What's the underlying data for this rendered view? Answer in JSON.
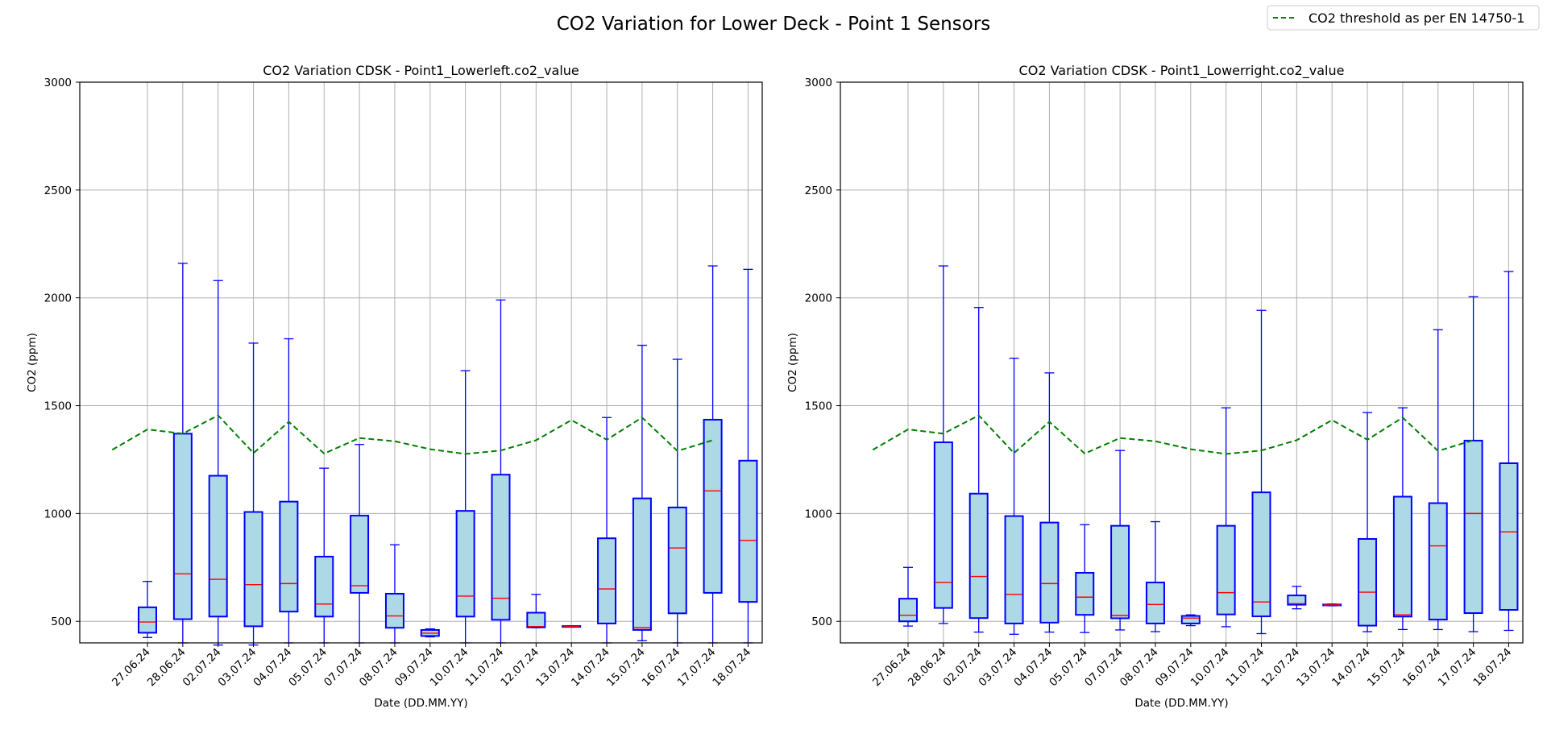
{
  "figure": {
    "title": "CO2 Variation for Lower Deck - Point 1 Sensors",
    "legend": {
      "label": "CO2 threshold as per EN 14750-1",
      "placement": "top-right"
    }
  },
  "colors": {
    "box_fill": "#add8e6",
    "box_edge": "#0000ff",
    "median": "#ff0000",
    "threshold": "#008000",
    "grid": "#b0b0b0"
  },
  "chart_data": [
    {
      "type": "box",
      "title": "CO2 Variation CDSK - Point1_Lowerleft.co2_value",
      "xlabel": "Date (DD.MM.YY)",
      "ylabel": "CO2 (ppm)",
      "ylim": [
        400,
        3000
      ],
      "yticks": [
        500,
        1000,
        1500,
        2000,
        2500,
        3000
      ],
      "grid": true,
      "categories": [
        "27.06.24",
        "28.06.24",
        "02.07.24",
        "03.07.24",
        "04.07.24",
        "05.07.24",
        "07.07.24",
        "08.07.24",
        "09.07.24",
        "10.07.24",
        "11.07.24",
        "12.07.24",
        "13.07.24",
        "14.07.24",
        "15.07.24",
        "16.07.24",
        "17.07.24",
        "18.07.24"
      ],
      "boxes": [
        {
          "whislo": 425,
          "q1": 447,
          "med": 497,
          "q3": 565,
          "whishi": 685
        },
        {
          "whislo": 400,
          "q1": 510,
          "med": 720,
          "q3": 1370,
          "whishi": 2160
        },
        {
          "whislo": 390,
          "q1": 522,
          "med": 695,
          "q3": 1175,
          "whishi": 2080
        },
        {
          "whislo": 390,
          "q1": 477,
          "med": 670,
          "q3": 1007,
          "whishi": 1790
        },
        {
          "whislo": 400,
          "q1": 545,
          "med": 675,
          "q3": 1055,
          "whishi": 1810
        },
        {
          "whislo": 400,
          "q1": 522,
          "med": 580,
          "q3": 800,
          "whishi": 1210
        },
        {
          "whislo": 400,
          "q1": 632,
          "med": 665,
          "q3": 990,
          "whishi": 1320
        },
        {
          "whislo": 400,
          "q1": 470,
          "med": 525,
          "q3": 628,
          "whishi": 855
        },
        {
          "whislo": 428,
          "q1": 432,
          "med": 445,
          "q3": 460,
          "whishi": 465
        },
        {
          "whislo": 400,
          "q1": 522,
          "med": 617,
          "q3": 1012,
          "whishi": 1662
        },
        {
          "whislo": 400,
          "q1": 507,
          "med": 607,
          "q3": 1180,
          "whishi": 1990
        },
        {
          "whislo": 470,
          "q1": 472,
          "med": 476,
          "q3": 540,
          "whishi": 625
        },
        {
          "whislo": 474,
          "q1": 474,
          "med": 476,
          "q3": 478,
          "whishi": 478
        },
        {
          "whislo": 400,
          "q1": 490,
          "med": 650,
          "q3": 885,
          "whishi": 1445
        },
        {
          "whislo": 410,
          "q1": 460,
          "med": 470,
          "q3": 1070,
          "whishi": 1780
        },
        {
          "whislo": 400,
          "q1": 537,
          "med": 840,
          "q3": 1028,
          "whishi": 1715
        },
        {
          "whislo": 400,
          "q1": 632,
          "med": 1105,
          "q3": 1435,
          "whishi": 2148
        },
        {
          "whislo": 400,
          "q1": 590,
          "med": 875,
          "q3": 1245,
          "whishi": 2132
        }
      ],
      "threshold": {
        "name": "CO2 threshold as per EN 14750-1",
        "style": "dashed",
        "x_index": [
          -1,
          0,
          1,
          2,
          3,
          4,
          5,
          6,
          7,
          8,
          9,
          10,
          11,
          12,
          13,
          14,
          15,
          16
        ],
        "values": [
          1295,
          1390,
          1370,
          1455,
          1280,
          1425,
          1278,
          1350,
          1335,
          1298,
          1276,
          1292,
          1340,
          1433,
          1342,
          1445,
          1290,
          1340
        ]
      }
    },
    {
      "type": "box",
      "title": "CO2 Variation CDSK - Point1_Lowerright.co2_value",
      "xlabel": "Date (DD.MM.YY)",
      "ylabel": "CO2 (ppm)",
      "ylim": [
        400,
        3000
      ],
      "yticks": [
        500,
        1000,
        1500,
        2000,
        2500,
        3000
      ],
      "grid": true,
      "categories": [
        "27.06.24",
        "28.06.24",
        "02.07.24",
        "03.07.24",
        "04.07.24",
        "05.07.24",
        "07.07.24",
        "08.07.24",
        "09.07.24",
        "10.07.24",
        "11.07.24",
        "12.07.24",
        "13.07.24",
        "14.07.24",
        "15.07.24",
        "16.07.24",
        "17.07.24",
        "18.07.24"
      ],
      "boxes": [
        {
          "whislo": 478,
          "q1": 500,
          "med": 528,
          "q3": 605,
          "whishi": 750
        },
        {
          "whislo": 490,
          "q1": 562,
          "med": 680,
          "q3": 1330,
          "whishi": 2148
        },
        {
          "whislo": 450,
          "q1": 515,
          "med": 708,
          "q3": 1092,
          "whishi": 1955
        },
        {
          "whislo": 440,
          "q1": 490,
          "med": 625,
          "q3": 988,
          "whishi": 1720
        },
        {
          "whislo": 450,
          "q1": 494,
          "med": 675,
          "q3": 958,
          "whishi": 1652
        },
        {
          "whislo": 448,
          "q1": 530,
          "med": 612,
          "q3": 725,
          "whishi": 948
        },
        {
          "whislo": 460,
          "q1": 514,
          "med": 527,
          "q3": 943,
          "whishi": 1292
        },
        {
          "whislo": 452,
          "q1": 490,
          "med": 578,
          "q3": 680,
          "whishi": 962
        },
        {
          "whislo": 480,
          "q1": 490,
          "med": 515,
          "q3": 525,
          "whishi": 530
        },
        {
          "whislo": 475,
          "q1": 532,
          "med": 633,
          "q3": 943,
          "whishi": 1490
        },
        {
          "whislo": 443,
          "q1": 523,
          "med": 590,
          "q3": 1098,
          "whishi": 1942
        },
        {
          "whislo": 558,
          "q1": 577,
          "med": 582,
          "q3": 620,
          "whishi": 662
        },
        {
          "whislo": 572,
          "q1": 574,
          "med": 576,
          "q3": 578,
          "whishi": 580
        },
        {
          "whislo": 452,
          "q1": 480,
          "med": 635,
          "q3": 882,
          "whishi": 1468
        },
        {
          "whislo": 462,
          "q1": 522,
          "med": 530,
          "q3": 1078,
          "whishi": 1490
        },
        {
          "whislo": 462,
          "q1": 508,
          "med": 850,
          "q3": 1048,
          "whishi": 1852
        },
        {
          "whislo": 452,
          "q1": 538,
          "med": 1000,
          "q3": 1338,
          "whishi": 2005
        },
        {
          "whislo": 458,
          "q1": 553,
          "med": 915,
          "q3": 1233,
          "whishi": 2122
        }
      ],
      "threshold": {
        "name": "CO2 threshold as per EN 14750-1",
        "style": "dashed",
        "x_index": [
          -1,
          0,
          1,
          2,
          3,
          4,
          5,
          6,
          7,
          8,
          9,
          10,
          11,
          12,
          13,
          14,
          15,
          16
        ],
        "values": [
          1295,
          1390,
          1370,
          1455,
          1280,
          1425,
          1278,
          1350,
          1335,
          1298,
          1276,
          1292,
          1340,
          1433,
          1342,
          1445,
          1290,
          1340
        ]
      }
    }
  ]
}
